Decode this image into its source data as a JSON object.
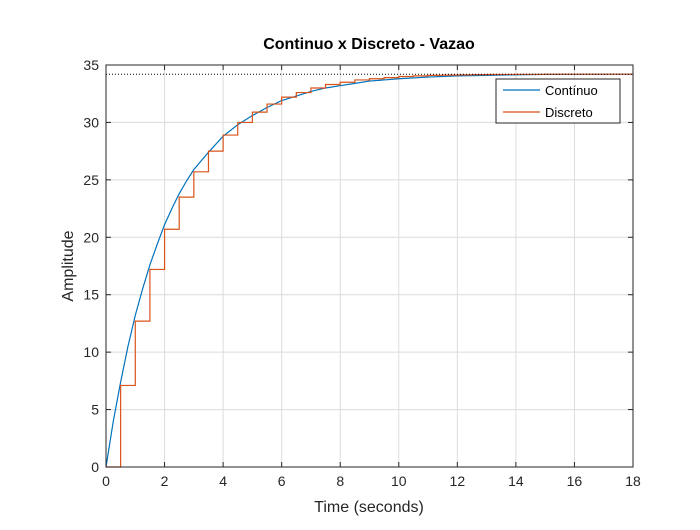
{
  "chart_data": {
    "type": "line",
    "title": "Continuo x Discreto - Vazao",
    "xlabel": "Time (seconds)",
    "ylabel": "Amplitude",
    "xlim": [
      0,
      18
    ],
    "ylim": [
      0,
      35
    ],
    "x_ticks": [
      0,
      2,
      4,
      6,
      8,
      10,
      12,
      14,
      16,
      18
    ],
    "y_ticks": [
      0,
      5,
      10,
      15,
      20,
      25,
      30,
      35
    ],
    "grid": true,
    "legend_position": "top-right",
    "steady_state": 34.2,
    "series": [
      {
        "name": "Contínuo",
        "style": "continuous",
        "color": "#0072BD",
        "x": [
          0,
          0.25,
          0.5,
          0.75,
          1,
          1.25,
          1.5,
          1.75,
          2,
          2.25,
          2.5,
          2.75,
          3,
          3.5,
          4,
          4.5,
          5,
          5.5,
          6,
          6.5,
          7,
          7.5,
          8,
          8.5,
          9,
          9.5,
          10,
          11,
          12,
          13,
          14,
          15,
          16,
          17,
          18
        ],
        "y": [
          0,
          4.0,
          7.4,
          10.5,
          13.2,
          15.5,
          17.6,
          19.4,
          21.1,
          22.5,
          23.8,
          24.9,
          25.9,
          27.4,
          28.8,
          29.8,
          30.6,
          31.3,
          31.9,
          32.3,
          32.7,
          33.0,
          33.2,
          33.4,
          33.6,
          33.7,
          33.8,
          33.95,
          34.05,
          34.1,
          34.15,
          34.18,
          34.19,
          34.2,
          34.2
        ]
      },
      {
        "name": "Discreto",
        "style": "step",
        "color": "#D95319",
        "x": [
          0,
          0.5,
          1,
          1.5,
          2,
          2.5,
          3,
          3.5,
          4,
          4.5,
          5,
          5.5,
          6,
          6.5,
          7,
          7.5,
          8,
          8.5,
          9,
          9.5,
          10,
          10.5,
          11,
          11.5,
          12,
          12.5,
          13,
          13.5,
          14,
          14.5,
          15,
          15.5,
          16,
          16.5,
          17,
          17.5,
          18
        ],
        "y": [
          0,
          7.1,
          12.7,
          17.2,
          20.7,
          23.5,
          25.7,
          27.5,
          28.9,
          30.0,
          30.9,
          31.6,
          32.2,
          32.6,
          33.0,
          33.3,
          33.5,
          33.7,
          33.8,
          33.9,
          34.0,
          34.05,
          34.1,
          34.12,
          34.14,
          34.16,
          34.17,
          34.18,
          34.19,
          34.19,
          34.2,
          34.2,
          34.2,
          34.2,
          34.2,
          34.2,
          34.2
        ]
      }
    ]
  }
}
